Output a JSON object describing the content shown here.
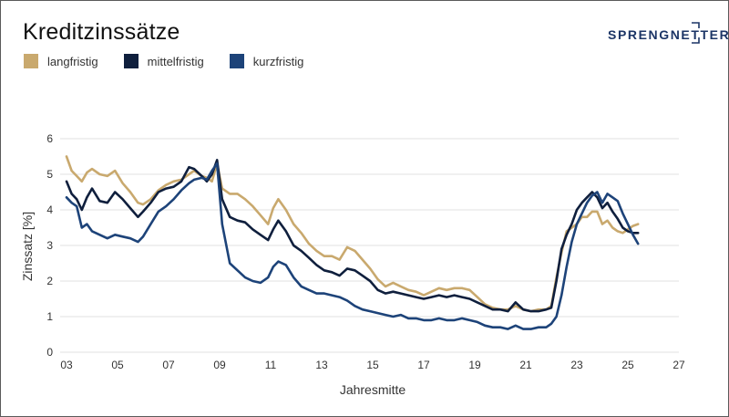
{
  "brand": {
    "logo_text": "SPRENGNETTER",
    "color": "#1c3566"
  },
  "chart_data": {
    "type": "line",
    "title": "Kreditzinssätze",
    "xlabel": "Jahresmitte",
    "ylabel": "Zinssatz [%]",
    "xlim": [
      2003,
      2027
    ],
    "ylim": [
      0,
      6
    ],
    "grid": true,
    "legend_position": "top-left",
    "x_ticks": [
      {
        "value": 2003,
        "label": "03"
      },
      {
        "value": 2005,
        "label": "05"
      },
      {
        "value": 2007,
        "label": "07"
      },
      {
        "value": 2009,
        "label": "09"
      },
      {
        "value": 2011,
        "label": "11"
      },
      {
        "value": 2013,
        "label": "13"
      },
      {
        "value": 2015,
        "label": "15"
      },
      {
        "value": 2017,
        "label": "17"
      },
      {
        "value": 2019,
        "label": "19"
      },
      {
        "value": 2021,
        "label": "21"
      },
      {
        "value": 2023,
        "label": "23"
      },
      {
        "value": 2025,
        "label": "25"
      },
      {
        "value": 2027,
        "label": "27"
      }
    ],
    "y_ticks": [
      {
        "value": 0,
        "label": "0"
      },
      {
        "value": 1,
        "label": "1"
      },
      {
        "value": 2,
        "label": "2"
      },
      {
        "value": 3,
        "label": "3"
      },
      {
        "value": 4,
        "label": "4"
      },
      {
        "value": 5,
        "label": "5"
      },
      {
        "value": 6,
        "label": "6"
      }
    ],
    "series": [
      {
        "name": "langfristig",
        "color": "#c9a96e",
        "x": [
          2003.0,
          2003.2,
          2003.4,
          2003.6,
          2003.8,
          2004.0,
          2004.3,
          2004.6,
          2004.9,
          2005.2,
          2005.5,
          2005.8,
          2006.0,
          2006.3,
          2006.6,
          2006.9,
          2007.2,
          2007.5,
          2007.8,
          2008.0,
          2008.3,
          2008.5,
          2008.7,
          2008.9,
          2009.1,
          2009.4,
          2009.7,
          2010.0,
          2010.3,
          2010.6,
          2010.9,
          2011.1,
          2011.3,
          2011.6,
          2011.9,
          2012.2,
          2012.5,
          2012.8,
          2013.1,
          2013.4,
          2013.7,
          2014.0,
          2014.3,
          2014.6,
          2014.9,
          2015.2,
          2015.5,
          2015.8,
          2016.1,
          2016.4,
          2016.7,
          2017.0,
          2017.3,
          2017.6,
          2017.9,
          2018.2,
          2018.5,
          2018.8,
          2019.1,
          2019.4,
          2019.7,
          2020.0,
          2020.3,
          2020.6,
          2020.9,
          2021.2,
          2021.5,
          2021.8,
          2022.0,
          2022.2,
          2022.4,
          2022.6,
          2022.8,
          2023.0,
          2023.2,
          2023.4,
          2023.6,
          2023.8,
          2024.0,
          2024.2,
          2024.4,
          2024.6,
          2024.8,
          2025.0,
          2025.2,
          2025.4
        ],
        "y": [
          5.5,
          5.1,
          4.95,
          4.8,
          5.05,
          5.15,
          5.0,
          4.95,
          5.1,
          4.75,
          4.5,
          4.2,
          4.15,
          4.3,
          4.55,
          4.7,
          4.8,
          4.85,
          5.0,
          5.1,
          4.95,
          4.9,
          4.8,
          5.3,
          4.6,
          4.45,
          4.45,
          4.3,
          4.1,
          3.85,
          3.6,
          4.05,
          4.3,
          4.0,
          3.6,
          3.35,
          3.05,
          2.85,
          2.7,
          2.7,
          2.6,
          2.95,
          2.85,
          2.6,
          2.35,
          2.05,
          1.85,
          1.95,
          1.85,
          1.75,
          1.7,
          1.6,
          1.7,
          1.8,
          1.75,
          1.8,
          1.8,
          1.75,
          1.55,
          1.35,
          1.25,
          1.2,
          1.2,
          1.3,
          1.2,
          1.15,
          1.2,
          1.2,
          1.3,
          2.1,
          2.8,
          3.4,
          3.5,
          3.6,
          3.8,
          3.8,
          3.95,
          3.95,
          3.6,
          3.7,
          3.5,
          3.4,
          3.35,
          3.45,
          3.55,
          3.6
        ]
      },
      {
        "name": "mittelfristig",
        "color": "#0f1f3d",
        "x": [
          2003.0,
          2003.2,
          2003.4,
          2003.6,
          2003.8,
          2004.0,
          2004.3,
          2004.6,
          2004.9,
          2005.2,
          2005.5,
          2005.8,
          2006.0,
          2006.3,
          2006.6,
          2006.9,
          2007.2,
          2007.5,
          2007.8,
          2008.0,
          2008.3,
          2008.5,
          2008.7,
          2008.9,
          2009.1,
          2009.4,
          2009.7,
          2010.0,
          2010.3,
          2010.6,
          2010.9,
          2011.1,
          2011.3,
          2011.6,
          2011.9,
          2012.2,
          2012.5,
          2012.8,
          2013.1,
          2013.4,
          2013.7,
          2014.0,
          2014.3,
          2014.6,
          2014.9,
          2015.2,
          2015.5,
          2015.8,
          2016.1,
          2016.4,
          2016.7,
          2017.0,
          2017.3,
          2017.6,
          2017.9,
          2018.2,
          2018.5,
          2018.8,
          2019.1,
          2019.4,
          2019.7,
          2020.0,
          2020.3,
          2020.6,
          2020.9,
          2021.2,
          2021.5,
          2021.8,
          2022.0,
          2022.2,
          2022.4,
          2022.6,
          2022.8,
          2023.0,
          2023.2,
          2023.4,
          2023.6,
          2023.8,
          2024.0,
          2024.2,
          2024.4,
          2024.6,
          2024.8,
          2025.0,
          2025.2,
          2025.4
        ],
        "y": [
          4.8,
          4.45,
          4.3,
          4.0,
          4.35,
          4.6,
          4.25,
          4.2,
          4.5,
          4.3,
          4.05,
          3.8,
          3.95,
          4.2,
          4.5,
          4.6,
          4.65,
          4.8,
          5.2,
          5.15,
          4.95,
          4.8,
          5.0,
          5.4,
          4.3,
          3.8,
          3.7,
          3.65,
          3.45,
          3.3,
          3.15,
          3.45,
          3.7,
          3.4,
          3.0,
          2.85,
          2.65,
          2.45,
          2.3,
          2.25,
          2.15,
          2.35,
          2.3,
          2.15,
          2.0,
          1.75,
          1.65,
          1.7,
          1.65,
          1.6,
          1.55,
          1.5,
          1.55,
          1.6,
          1.55,
          1.6,
          1.55,
          1.5,
          1.4,
          1.3,
          1.2,
          1.2,
          1.15,
          1.4,
          1.2,
          1.15,
          1.15,
          1.2,
          1.25,
          2.0,
          2.9,
          3.3,
          3.6,
          4.0,
          4.2,
          4.35,
          4.5,
          4.35,
          4.05,
          4.2,
          3.95,
          3.75,
          3.5,
          3.4,
          3.35,
          3.35
        ]
      },
      {
        "name": "kurzfristig",
        "color": "#1d4379",
        "x": [
          2003.0,
          2003.2,
          2003.4,
          2003.6,
          2003.8,
          2004.0,
          2004.3,
          2004.6,
          2004.9,
          2005.2,
          2005.5,
          2005.8,
          2006.0,
          2006.3,
          2006.6,
          2006.9,
          2007.2,
          2007.5,
          2007.8,
          2008.0,
          2008.3,
          2008.5,
          2008.7,
          2008.9,
          2009.1,
          2009.4,
          2009.7,
          2010.0,
          2010.3,
          2010.6,
          2010.9,
          2011.1,
          2011.3,
          2011.6,
          2011.9,
          2012.2,
          2012.5,
          2012.8,
          2013.1,
          2013.4,
          2013.7,
          2014.0,
          2014.3,
          2014.6,
          2014.9,
          2015.2,
          2015.5,
          2015.8,
          2016.1,
          2016.4,
          2016.7,
          2017.0,
          2017.3,
          2017.6,
          2017.9,
          2018.2,
          2018.5,
          2018.8,
          2019.1,
          2019.4,
          2019.7,
          2020.0,
          2020.3,
          2020.6,
          2020.9,
          2021.2,
          2021.5,
          2021.8,
          2022.0,
          2022.2,
          2022.4,
          2022.6,
          2022.8,
          2023.0,
          2023.2,
          2023.4,
          2023.6,
          2023.8,
          2024.0,
          2024.2,
          2024.4,
          2024.6,
          2024.8,
          2025.0,
          2025.2,
          2025.4
        ],
        "y": [
          4.35,
          4.2,
          4.1,
          3.5,
          3.6,
          3.4,
          3.3,
          3.2,
          3.3,
          3.25,
          3.2,
          3.1,
          3.25,
          3.6,
          3.95,
          4.1,
          4.3,
          4.55,
          4.75,
          4.85,
          4.9,
          4.85,
          5.1,
          5.3,
          3.6,
          2.5,
          2.3,
          2.1,
          2.0,
          1.95,
          2.1,
          2.4,
          2.55,
          2.45,
          2.1,
          1.85,
          1.75,
          1.65,
          1.65,
          1.6,
          1.55,
          1.45,
          1.3,
          1.2,
          1.15,
          1.1,
          1.05,
          1.0,
          1.05,
          0.95,
          0.95,
          0.9,
          0.9,
          0.95,
          0.9,
          0.9,
          0.95,
          0.9,
          0.85,
          0.75,
          0.7,
          0.7,
          0.65,
          0.75,
          0.65,
          0.65,
          0.7,
          0.7,
          0.8,
          1.0,
          1.6,
          2.4,
          3.1,
          3.6,
          3.9,
          4.2,
          4.4,
          4.5,
          4.2,
          4.45,
          4.35,
          4.25,
          3.9,
          3.6,
          3.3,
          3.05
        ]
      }
    ]
  }
}
